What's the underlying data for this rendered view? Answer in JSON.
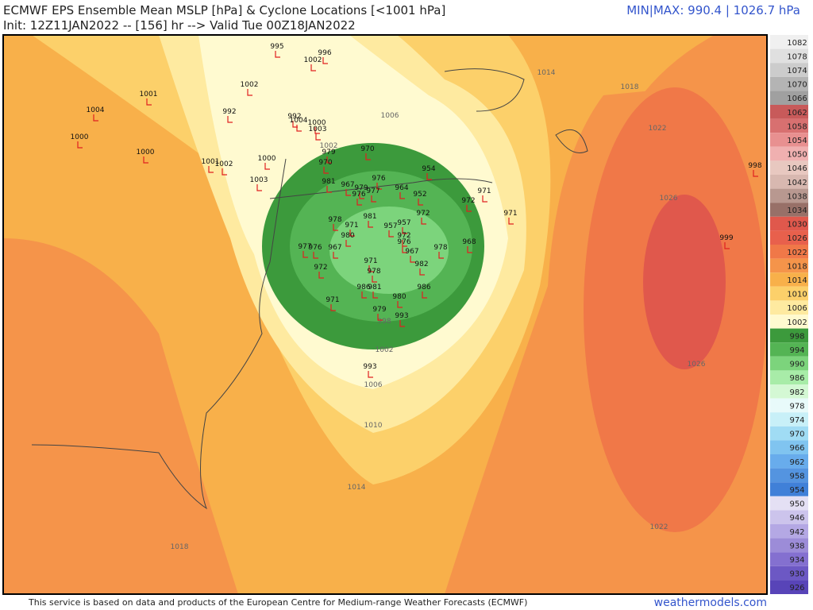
{
  "header": {
    "title": "ECMWF EPS Ensemble Mean MSLP [hPa] & Cyclone Locations [<1001 hPa]",
    "subtitle": "Init: 12Z11JAN2022 -- [156] hr --> Valid Tue 00Z18JAN2022",
    "minmax": "MIN|MAX: 990.4 | 1026.7 hPa"
  },
  "footer": {
    "credit": "This service is based on data and products of the European Centre for Medium-range Weather Forecasts (ECMWF)",
    "site": "weathermodels.com"
  },
  "colorbar": {
    "levels": [
      1082,
      1078,
      1074,
      1070,
      1066,
      1062,
      1058,
      1054,
      1050,
      1046,
      1042,
      1038,
      1034,
      1030,
      1026,
      1022,
      1018,
      1014,
      1010,
      1006,
      1002,
      998,
      994,
      990,
      986,
      982,
      978,
      974,
      970,
      966,
      962,
      958,
      954,
      950,
      946,
      942,
      938,
      934,
      930,
      926
    ],
    "colors": [
      "#f0f0f0",
      "#e0e0e0",
      "#cccccc",
      "#b4b4b4",
      "#a0a0a0",
      "#c85a5a",
      "#d87070",
      "#e89090",
      "#f0b0b0",
      "#e8c8c0",
      "#d8b8b0",
      "#b89890",
      "#987068",
      "#e0584c",
      "#e8604c",
      "#f07848",
      "#f5944a",
      "#f8b04a",
      "#fcd06a",
      "#feeaa0",
      "#fffad0",
      "#3c9a3c",
      "#54b454",
      "#7cd47c",
      "#a8eca8",
      "#d4f8d4",
      "#e8fafa",
      "#c8f0f8",
      "#a0dcf4",
      "#80c4f0",
      "#68acec",
      "#5494e0",
      "#4080d8",
      "#e4e0f4",
      "#ccc4ec",
      "#b4a8e4",
      "#9c8cd8",
      "#8470d0",
      "#6c58c4",
      "#5844b8"
    ]
  },
  "contours": [
    1014,
    1018,
    1022,
    1026,
    1006,
    1002,
    998,
    1002,
    1006,
    1010,
    1014,
    1018,
    1022,
    1026
  ],
  "cyclones": [
    995,
    996,
    1002,
    1002,
    1001,
    1004,
    992,
    992,
    1004,
    1000,
    1003,
    1000,
    1000,
    979,
    970,
    970,
    1001,
    1002,
    1000,
    1003,
    981,
    967,
    976,
    979,
    976,
    977,
    964,
    954,
    952,
    971,
    972,
    971,
    972,
    981,
    978,
    971,
    957,
    957,
    972,
    980,
    976,
    967,
    977,
    976,
    971,
    967,
    978,
    968,
    982,
    972,
    978,
    986,
    981,
    986,
    980,
    971,
    979,
    993,
    993,
    998,
    999
  ]
}
